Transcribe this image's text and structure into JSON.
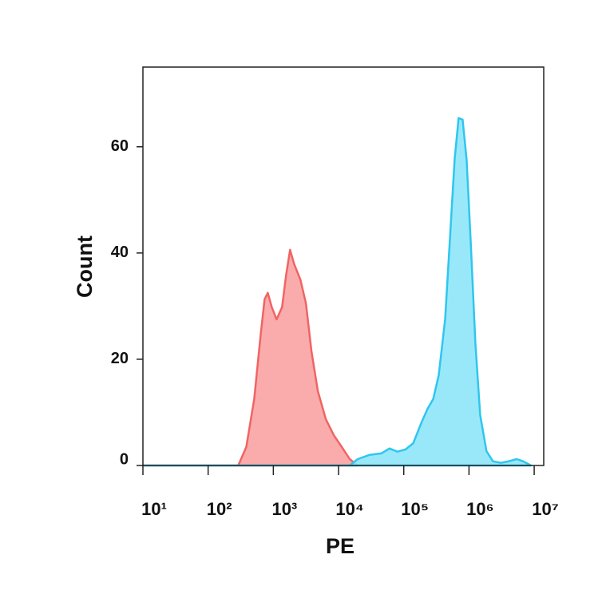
{
  "chart_data": {
    "type": "histogram-overlay",
    "x_label": "PE",
    "y_label": "Count",
    "xscale": "log",
    "xlim": [
      10,
      14000000
    ],
    "xticks": [
      {
        "value": 10,
        "label": "10¹"
      },
      {
        "value": 100,
        "label": "10²"
      },
      {
        "value": 1000,
        "label": "10³"
      },
      {
        "value": 10000,
        "label": "10⁴"
      },
      {
        "value": 100000,
        "label": "10⁵"
      },
      {
        "value": 1000000,
        "label": "10⁶"
      },
      {
        "value": 10000000,
        "label": "10⁷"
      }
    ],
    "ylim": [
      0,
      75
    ],
    "yticks": [
      0,
      20,
      40,
      60
    ],
    "series": [
      {
        "color": "#f06464",
        "fill": "#f9a3a3",
        "x": [
          10,
          290,
          385,
          509,
          638,
          735,
          822,
          946,
          1120,
          1362,
          1568,
          1803,
          2075,
          2600,
          3162,
          3847,
          4818,
          6383,
          8453,
          11190,
          14830,
          19630
        ],
        "values": [
          0,
          0,
          3.5,
          12.5,
          24.5,
          31.3,
          32.5,
          29.8,
          27.5,
          29.8,
          35.8,
          40.6,
          38,
          35,
          30.5,
          21.5,
          14,
          8.7,
          5.7,
          3.5,
          1.2,
          0
        ]
      },
      {
        "color": "#2ec6ef",
        "fill": "#8ee6fa",
        "x": [
          10,
          14830,
          19630,
          29900,
          45600,
          60300,
          79800,
          105700,
          140000,
          185400,
          232300,
          282600,
          344000,
          430600,
          509800,
          603000,
          693600,
          798000,
          918000,
          1057000,
          1253000,
          1483000,
          1855000,
          2321000,
          3076000,
          4073000,
          5395000,
          6748000,
          8930000
        ],
        "values": [
          0,
          0,
          1.2,
          2,
          2.3,
          3.2,
          2.6,
          3,
          4.2,
          8,
          10.7,
          12.5,
          17,
          27.5,
          42.6,
          57.6,
          65.4,
          65.1,
          57.6,
          42.6,
          23,
          9.5,
          2.7,
          0.8,
          0.5,
          0.8,
          1.2,
          0.8,
          0
        ]
      }
    ]
  }
}
